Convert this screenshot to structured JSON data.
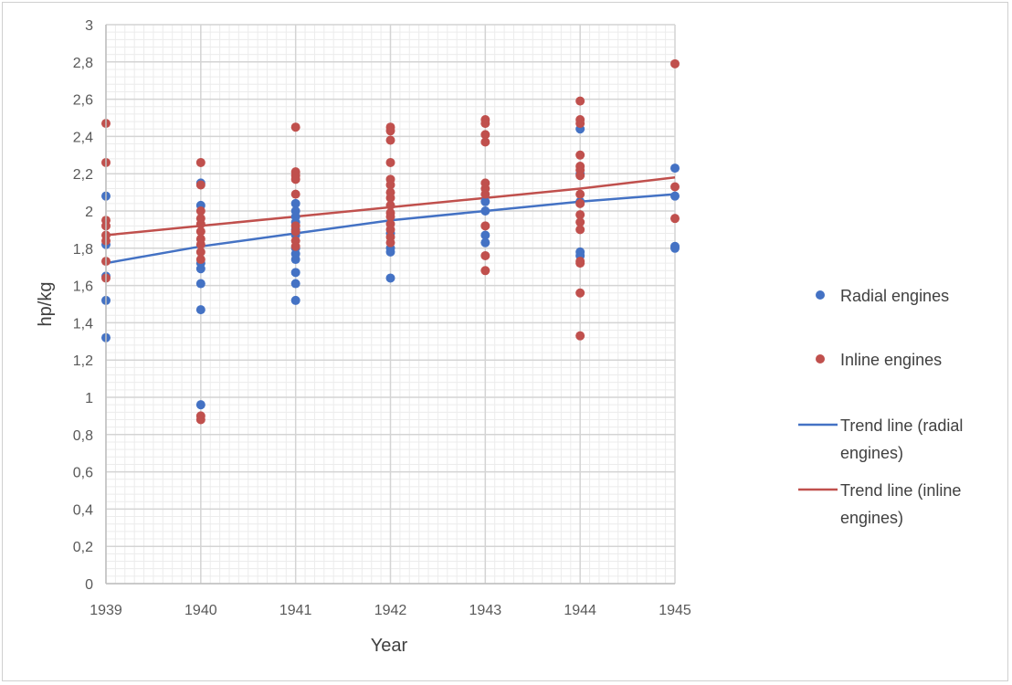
{
  "chart_data": {
    "type": "scatter",
    "title": "",
    "xlabel": "Year",
    "ylabel": "hp/kg",
    "xlim": [
      1939,
      1945
    ],
    "ylim": [
      0,
      3
    ],
    "x_ticks": [
      "1939",
      "1940",
      "1941",
      "1942",
      "1943",
      "1944",
      "1945"
    ],
    "y_ticks": [
      "0",
      "0,2",
      "0,4",
      "0,6",
      "0,8",
      "1",
      "1,2",
      "1,4",
      "1,6",
      "1,8",
      "2",
      "2,2",
      "2,4",
      "2,6",
      "2,8",
      "3"
    ],
    "grid": "on (major and minor)",
    "legend_placement": "right",
    "series": [
      {
        "name": "Radial engines",
        "kind": "scatter",
        "color": "#4472c4",
        "points": [
          [
            1939,
            2.08
          ],
          [
            1939,
            1.82
          ],
          [
            1939,
            1.65
          ],
          [
            1939,
            1.52
          ],
          [
            1939,
            1.32
          ],
          [
            1940,
            2.15
          ],
          [
            1940,
            2.03
          ],
          [
            1940,
            1.72
          ],
          [
            1940,
            1.69
          ],
          [
            1940,
            1.61
          ],
          [
            1940,
            1.47
          ],
          [
            1940,
            0.96
          ],
          [
            1941,
            2.04
          ],
          [
            1941,
            2.0
          ],
          [
            1941,
            1.97
          ],
          [
            1941,
            1.94
          ],
          [
            1941,
            1.9
          ],
          [
            1941,
            1.87
          ],
          [
            1941,
            1.8
          ],
          [
            1941,
            1.77
          ],
          [
            1941,
            1.74
          ],
          [
            1941,
            1.67
          ],
          [
            1941,
            1.61
          ],
          [
            1941,
            1.52
          ],
          [
            1942,
            1.88
          ],
          [
            1942,
            1.8
          ],
          [
            1942,
            1.78
          ],
          [
            1942,
            1.64
          ],
          [
            1943,
            2.05
          ],
          [
            1943,
            2.0
          ],
          [
            1943,
            1.87
          ],
          [
            1943,
            1.83
          ],
          [
            1944,
            2.44
          ],
          [
            1944,
            2.2
          ],
          [
            1944,
            2.05
          ],
          [
            1944,
            1.78
          ],
          [
            1944,
            1.76
          ],
          [
            1945,
            2.23
          ],
          [
            1945,
            2.08
          ],
          [
            1945,
            1.81
          ],
          [
            1945,
            1.8
          ]
        ]
      },
      {
        "name": "Inline engines",
        "kind": "scatter",
        "color": "#c0504d",
        "points": [
          [
            1939,
            2.47
          ],
          [
            1939,
            2.26
          ],
          [
            1939,
            1.95
          ],
          [
            1939,
            1.92
          ],
          [
            1939,
            1.87
          ],
          [
            1939,
            1.84
          ],
          [
            1939,
            1.73
          ],
          [
            1939,
            1.64
          ],
          [
            1940,
            2.26
          ],
          [
            1940,
            2.14
          ],
          [
            1940,
            2.0
          ],
          [
            1940,
            1.96
          ],
          [
            1940,
            1.93
          ],
          [
            1940,
            1.89
          ],
          [
            1940,
            1.85
          ],
          [
            1940,
            1.82
          ],
          [
            1940,
            1.78
          ],
          [
            1940,
            1.74
          ],
          [
            1940,
            0.9
          ],
          [
            1940,
            0.88
          ],
          [
            1941,
            2.45
          ],
          [
            1941,
            2.21
          ],
          [
            1941,
            2.19
          ],
          [
            1941,
            2.17
          ],
          [
            1941,
            2.09
          ],
          [
            1941,
            1.92
          ],
          [
            1941,
            1.89
          ],
          [
            1941,
            1.84
          ],
          [
            1941,
            1.81
          ],
          [
            1942,
            2.45
          ],
          [
            1942,
            2.43
          ],
          [
            1942,
            2.38
          ],
          [
            1942,
            2.26
          ],
          [
            1942,
            2.17
          ],
          [
            1942,
            2.14
          ],
          [
            1942,
            2.1
          ],
          [
            1942,
            2.07
          ],
          [
            1942,
            2.03
          ],
          [
            1942,
            1.99
          ],
          [
            1942,
            1.97
          ],
          [
            1942,
            1.93
          ],
          [
            1942,
            1.9
          ],
          [
            1942,
            1.86
          ],
          [
            1942,
            1.83
          ],
          [
            1943,
            2.49
          ],
          [
            1943,
            2.47
          ],
          [
            1943,
            2.41
          ],
          [
            1943,
            2.37
          ],
          [
            1943,
            2.15
          ],
          [
            1943,
            2.12
          ],
          [
            1943,
            2.09
          ],
          [
            1943,
            1.92
          ],
          [
            1943,
            1.76
          ],
          [
            1943,
            1.68
          ],
          [
            1944,
            2.59
          ],
          [
            1944,
            2.49
          ],
          [
            1944,
            2.47
          ],
          [
            1944,
            2.3
          ],
          [
            1944,
            2.24
          ],
          [
            1944,
            2.22
          ],
          [
            1944,
            2.19
          ],
          [
            1944,
            2.09
          ],
          [
            1944,
            2.04
          ],
          [
            1944,
            1.98
          ],
          [
            1944,
            1.94
          ],
          [
            1944,
            1.9
          ],
          [
            1944,
            1.73
          ],
          [
            1944,
            1.72
          ],
          [
            1944,
            1.56
          ],
          [
            1944,
            1.33
          ],
          [
            1945,
            2.79
          ],
          [
            1945,
            2.13
          ],
          [
            1945,
            1.96
          ]
        ]
      },
      {
        "name": "Trend line (radial engines)",
        "kind": "line",
        "color": "#4472c4",
        "points": [
          [
            1939,
            1.72
          ],
          [
            1940,
            1.81
          ],
          [
            1941,
            1.88
          ],
          [
            1942,
            1.95
          ],
          [
            1943,
            2.0
          ],
          [
            1944,
            2.05
          ],
          [
            1945,
            2.09
          ]
        ]
      },
      {
        "name": "Trend line (inline engines)",
        "kind": "line",
        "color": "#c0504d",
        "points": [
          [
            1939,
            1.87
          ],
          [
            1940,
            1.92
          ],
          [
            1941,
            1.97
          ],
          [
            1942,
            2.02
          ],
          [
            1943,
            2.07
          ],
          [
            1944,
            2.12
          ],
          [
            1945,
            2.18
          ]
        ]
      }
    ],
    "legend": [
      {
        "lines": [
          "Radial engines"
        ],
        "marker": "dot",
        "color": "#4472c4"
      },
      {
        "lines": [
          "Inline engines"
        ],
        "marker": "dot",
        "color": "#c0504d"
      },
      {
        "lines": [
          "Trend line (radial",
          "engines)"
        ],
        "marker": "line",
        "color": "#4472c4"
      },
      {
        "lines": [
          "Trend line (inline",
          "engines)"
        ],
        "marker": "line",
        "color": "#c0504d"
      }
    ]
  }
}
